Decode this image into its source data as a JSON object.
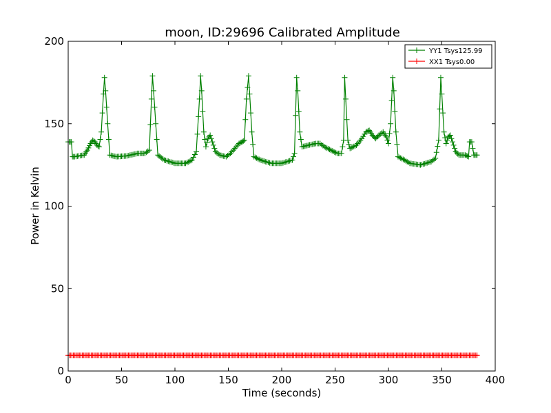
{
  "chart_data": {
    "type": "line",
    "title": "moon, ID:29696 Calibrated Amplitude",
    "xlabel": "Time (seconds)",
    "ylabel": "Power in Kelvin",
    "xlim": [
      0,
      400
    ],
    "ylim": [
      0,
      200
    ],
    "xticks": [
      "0",
      "50",
      "100",
      "150",
      "200",
      "250",
      "300",
      "350",
      "400"
    ],
    "yticks": [
      "0",
      "50",
      "100",
      "150",
      "200"
    ],
    "grid": false,
    "legend_position": "top-right",
    "series": [
      {
        "name": "YY1 Tsys125.99",
        "color": "#008000",
        "marker": "plus",
        "points": [
          [
            0,
            139
          ],
          [
            1,
            139
          ],
          [
            2,
            139
          ],
          [
            3,
            139
          ],
          [
            4,
            130
          ],
          [
            6,
            130
          ],
          [
            10,
            130.5
          ],
          [
            15,
            131
          ],
          [
            18,
            134
          ],
          [
            21,
            138
          ],
          [
            23,
            140
          ],
          [
            25,
            139
          ],
          [
            27,
            137
          ],
          [
            29,
            136
          ],
          [
            31,
            145
          ],
          [
            33,
            168
          ],
          [
            34,
            178
          ],
          [
            35,
            170
          ],
          [
            37,
            150
          ],
          [
            39,
            131
          ],
          [
            45,
            130
          ],
          [
            55,
            130.5
          ],
          [
            65,
            132
          ],
          [
            72,
            132
          ],
          [
            76,
            134
          ],
          [
            78,
            165
          ],
          [
            79,
            179
          ],
          [
            80,
            170
          ],
          [
            82,
            150
          ],
          [
            84,
            131
          ],
          [
            90,
            128
          ],
          [
            100,
            126
          ],
          [
            110,
            126
          ],
          [
            116,
            128
          ],
          [
            120,
            133
          ],
          [
            123,
            165
          ],
          [
            124,
            179
          ],
          [
            125,
            170
          ],
          [
            127,
            145
          ],
          [
            129,
            136
          ],
          [
            131,
            141
          ],
          [
            133,
            143
          ],
          [
            135,
            139
          ],
          [
            138,
            133
          ],
          [
            142,
            131
          ],
          [
            148,
            130
          ],
          [
            152,
            132
          ],
          [
            156,
            135
          ],
          [
            160,
            138
          ],
          [
            163,
            139
          ],
          [
            165,
            140
          ],
          [
            167,
            165
          ],
          [
            169,
            179
          ],
          [
            170,
            168
          ],
          [
            172,
            145
          ],
          [
            174,
            130
          ],
          [
            180,
            128
          ],
          [
            190,
            126
          ],
          [
            200,
            126
          ],
          [
            210,
            128
          ],
          [
            212,
            132
          ],
          [
            214,
            178
          ],
          [
            215,
            170
          ],
          [
            217,
            145
          ],
          [
            219,
            136
          ],
          [
            225,
            137
          ],
          [
            232,
            138
          ],
          [
            236,
            138
          ],
          [
            240,
            136
          ],
          [
            246,
            134
          ],
          [
            252,
            132
          ],
          [
            256,
            132
          ],
          [
            258,
            140
          ],
          [
            259,
            178
          ],
          [
            260,
            165
          ],
          [
            262,
            140
          ],
          [
            264,
            135
          ],
          [
            270,
            137
          ],
          [
            275,
            141
          ],
          [
            279,
            145
          ],
          [
            282,
            146
          ],
          [
            285,
            143
          ],
          [
            288,
            141
          ],
          [
            291,
            143
          ],
          [
            295,
            145
          ],
          [
            298,
            142
          ],
          [
            300,
            138
          ],
          [
            302,
            150
          ],
          [
            304,
            178
          ],
          [
            305,
            170
          ],
          [
            307,
            145
          ],
          [
            309,
            130
          ],
          [
            315,
            128
          ],
          [
            320,
            126
          ],
          [
            330,
            125
          ],
          [
            340,
            127
          ],
          [
            344,
            129
          ],
          [
            347,
            140
          ],
          [
            349,
            178
          ],
          [
            350,
            168
          ],
          [
            352,
            145
          ],
          [
            354,
            138
          ],
          [
            356,
            142
          ],
          [
            358,
            143
          ],
          [
            360,
            139
          ],
          [
            363,
            133
          ],
          [
            366,
            131
          ],
          [
            372,
            131
          ],
          [
            375,
            130
          ],
          [
            376,
            139
          ],
          [
            378,
            139
          ],
          [
            380,
            131
          ],
          [
            383,
            131
          ]
        ]
      },
      {
        "name": "XX1 Tsys0.00",
        "color": "#ff0000",
        "marker": "plus",
        "points": [
          [
            0,
            9.5
          ],
          [
            383,
            9.5
          ]
        ]
      }
    ]
  }
}
